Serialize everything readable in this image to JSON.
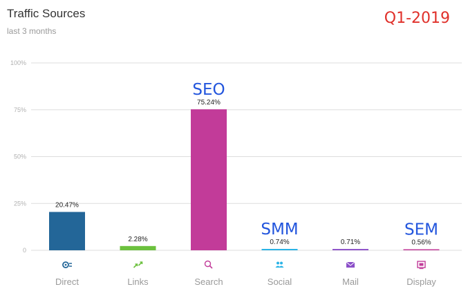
{
  "header": {
    "title": "Traffic Sources",
    "subtitle": "last 3 months",
    "badge": "Q1-2019"
  },
  "chart_data": {
    "type": "bar",
    "title": "Traffic Sources",
    "subtitle": "last 3 months",
    "categories": [
      "Direct",
      "Links",
      "Search",
      "Social",
      "Mail",
      "Display"
    ],
    "values": [
      20.47,
      2.28,
      75.24,
      0.74,
      0.71,
      0.56
    ],
    "value_labels": [
      "20.47%",
      "2.28%",
      "75.24%",
      "0.74%",
      "0.71%",
      "0.56%"
    ],
    "colors": [
      "#236698",
      "#6cc13e",
      "#c23b99",
      "#29b3e6",
      "#8b4fc8",
      "#c23b99"
    ],
    "icons": [
      "direct-icon",
      "links-icon",
      "search-icon",
      "social-icon",
      "mail-icon",
      "display-icon"
    ],
    "icon_colors": [
      "#236698",
      "#6cc13e",
      "#c23b99",
      "#29b3e6",
      "#8b4fc8",
      "#c23b99"
    ],
    "ylim": [
      0,
      100
    ],
    "yticks": [
      0,
      25,
      50,
      75,
      100
    ],
    "ytick_labels": [
      "0",
      "25%",
      "50%",
      "75%",
      "100%"
    ],
    "grid": true,
    "annotations": [
      {
        "text": "SEO",
        "category": "Search"
      },
      {
        "text": "SMM",
        "category": "Social"
      },
      {
        "text": "SEM",
        "category": "Display"
      }
    ]
  }
}
